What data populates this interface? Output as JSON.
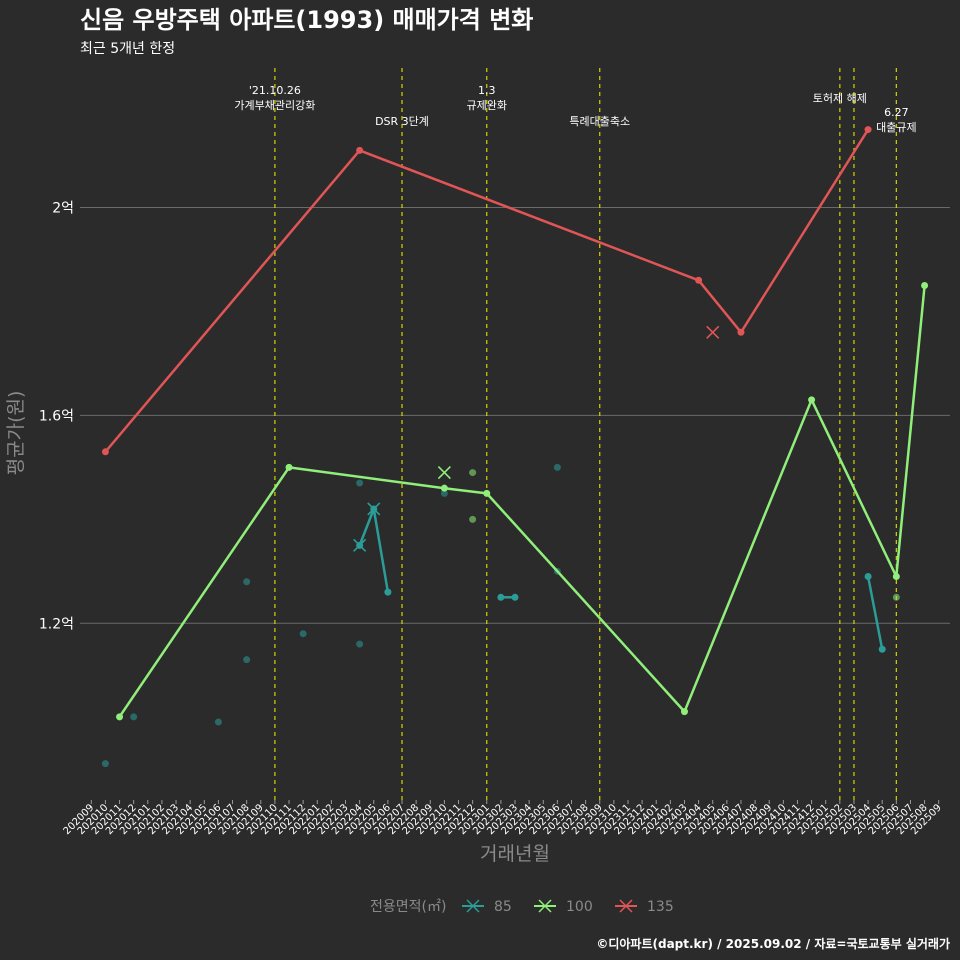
{
  "chart_data": {
    "type": "line",
    "title": "신음 우방주택 아파트(1993) 매매가격 변화",
    "subtitle": "최근 5개년 한정",
    "xlabel": "거래년월",
    "ylabel": "평균가(원)",
    "caption": "©디아파트(dapt.kr) / 2025.09.02 / 자료=국토교통부 실거래가",
    "ylim": [
      0.86,
      2.28
    ],
    "y_ticks": [
      {
        "value": 1.2,
        "label": "1.2억"
      },
      {
        "value": 1.6,
        "label": "1.6억"
      },
      {
        "value": 2.0,
        "label": "2억"
      }
    ],
    "x_categories": [
      "202009",
      "202010",
      "202011",
      "202012",
      "202101",
      "202102",
      "202103",
      "202104",
      "202105",
      "202106",
      "202107",
      "202108",
      "202109",
      "202110",
      "202111",
      "202112",
      "202201",
      "202202",
      "202203",
      "202204",
      "202205",
      "202206",
      "202207",
      "202208",
      "202209",
      "202210",
      "202211",
      "202212",
      "202301",
      "202302",
      "202303",
      "202304",
      "202305",
      "202306",
      "202307",
      "202308",
      "202309",
      "202310",
      "202311",
      "202312",
      "202401",
      "202402",
      "202403",
      "202404",
      "202405",
      "202406",
      "202407",
      "202408",
      "202409",
      "202410",
      "202411",
      "202412",
      "202501",
      "202502",
      "202503",
      "202504",
      "202505",
      "202506",
      "202507",
      "202508",
      "202509"
    ],
    "legend_title": "전용면적(㎡)",
    "grid": true,
    "legend_position": "bottom",
    "series": [
      {
        "name": "85",
        "color": "#2a9d99",
        "line": [
          {
            "x": "202204",
            "y": 1.35
          },
          {
            "x": "202205",
            "y": 1.42
          },
          {
            "x": "202206",
            "y": 1.26
          },
          {
            "x": "202302",
            "y": 1.25
          },
          {
            "x": "202303",
            "y": 1.25
          },
          {
            "x": "202504",
            "y": 1.29
          },
          {
            "x": "202505",
            "y": 1.15
          }
        ],
        "points": [
          {
            "x": "202010",
            "y": 0.93
          },
          {
            "x": "202012",
            "y": 1.02
          },
          {
            "x": "202106",
            "y": 1.01
          },
          {
            "x": "202108",
            "y": 1.28
          },
          {
            "x": "202108",
            "y": 1.13
          },
          {
            "x": "202112",
            "y": 1.18
          },
          {
            "x": "202204",
            "y": 1.47
          },
          {
            "x": "202204",
            "y": 1.16
          },
          {
            "x": "202210",
            "y": 1.45
          },
          {
            "x": "202306",
            "y": 1.3
          },
          {
            "x": "202306",
            "y": 1.5
          }
        ],
        "crosses": [
          {
            "x": "202204",
            "y": 1.35
          },
          {
            "x": "202205",
            "y": 1.42
          }
        ]
      },
      {
        "name": "100",
        "color": "#90ee7a",
        "line": [
          {
            "x": "202011",
            "y": 1.02
          },
          {
            "x": "202111",
            "y": 1.5
          },
          {
            "x": "202210",
            "y": 1.46
          },
          {
            "x": "202301",
            "y": 1.45
          },
          {
            "x": "202403",
            "y": 1.03
          },
          {
            "x": "202412",
            "y": 1.63
          },
          {
            "x": "202506",
            "y": 1.29
          },
          {
            "x": "202508",
            "y": 1.85
          }
        ],
        "points": [
          {
            "x": "202212",
            "y": 1.49
          },
          {
            "x": "202212",
            "y": 1.4
          },
          {
            "x": "202506",
            "y": 1.25
          }
        ],
        "crosses": [
          {
            "x": "202210",
            "y": 1.49
          }
        ]
      },
      {
        "name": "135",
        "color": "#e05555",
        "line": [
          {
            "x": "202010",
            "y": 1.53
          },
          {
            "x": "202204",
            "y": 2.11
          },
          {
            "x": "202404",
            "y": 1.86
          },
          {
            "x": "202407",
            "y": 1.76
          },
          {
            "x": "202504",
            "y": 2.15
          }
        ],
        "points": [],
        "crosses": [
          {
            "x": "202405",
            "y": 1.76
          }
        ]
      }
    ],
    "events": [
      {
        "x": "202110",
        "lines": [
          "'21.10.26",
          "가계부채관리강화"
        ]
      },
      {
        "x": "202207",
        "lines": [
          "DSR 3단계"
        ]
      },
      {
        "x": "202301",
        "lines": [
          "1.3",
          "규제완화"
        ]
      },
      {
        "x": "202309",
        "lines": [
          "특례대출축소"
        ]
      },
      {
        "x": "202502",
        "lines": [
          "토허제 해제"
        ]
      },
      {
        "x": "202503",
        "lines": []
      },
      {
        "x": "202506",
        "lines": [
          "6.27",
          "대출규제"
        ]
      }
    ]
  }
}
